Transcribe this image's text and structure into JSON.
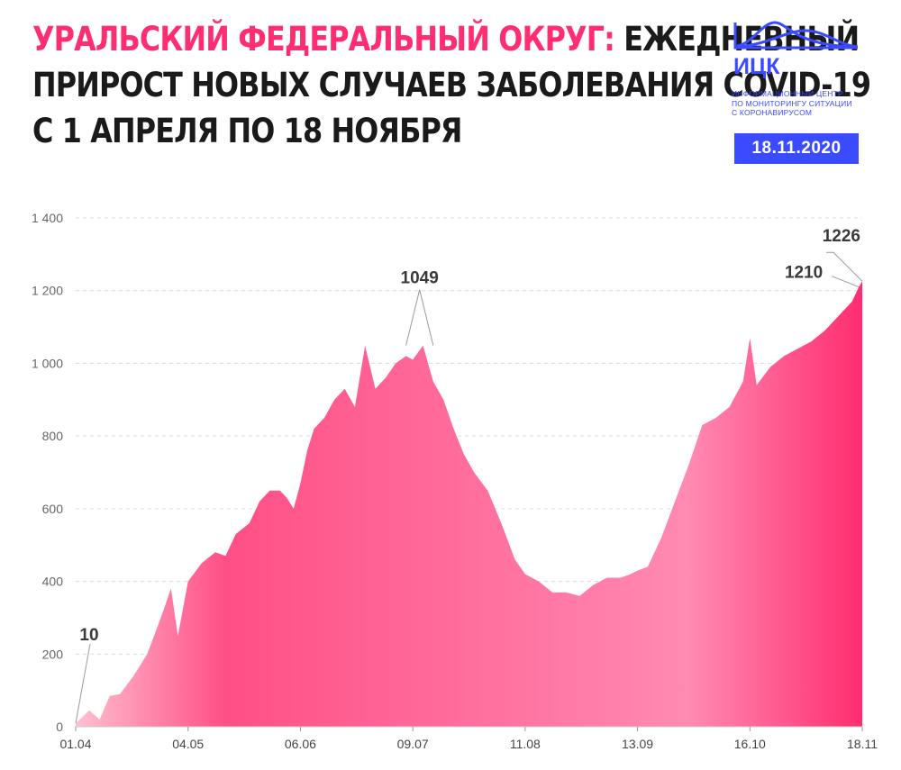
{
  "header": {
    "title_highlight": "УРАЛЬСКИЙ ФЕДЕРАЛЬНЫЙ ОКРУГ:",
    "title_line1_rest": " ЕЖЕДНЕВНЫЙ",
    "title_line2": "ПРИРОСТ НОВЫХ СЛУЧАЕВ ЗАБОЛЕВАНИЯ COVID-19",
    "title_line3": "С 1 АПРЕЛЯ ПО 18 НОЯБРЯ"
  },
  "logo": {
    "abbr": "ИЦК",
    "org_lines": [
      "ИНФОРМАЦИОННЫЙ ЦЕНТР",
      "ПО МОНИТОРИНГУ СИТУАЦИИ",
      "С КОРОНАВИРУСОМ"
    ],
    "date": "18.11.2020",
    "color": "#3b4bff"
  },
  "colors": {
    "accent": "#ff2e72",
    "area_start": "#ffc0d2",
    "area_mid": "#ff4f86",
    "area_light": "#ff8ab2",
    "area_end": "#ff2d70",
    "grid": "#d9d9d9",
    "text_dark": "#1a1a1a"
  },
  "chart_data": {
    "type": "area",
    "title": "УРАЛЬСКИЙ ФЕДЕРАЛЬНЫЙ ОКРУГ: ЕЖЕДНЕВНЫЙ ПРИРОСТ НОВЫХ СЛУЧАЕВ ЗАБОЛЕВАНИЯ COVID-19 С 1 АПРЕЛЯ ПО 18 НОЯБРЯ",
    "xlabel": "",
    "ylabel": "",
    "ylim": [
      0,
      1400
    ],
    "yticks": [
      0,
      200,
      400,
      600,
      800,
      1000,
      1200,
      1400
    ],
    "ytick_labels": [
      "0",
      "200",
      "400",
      "600",
      "800",
      "1 000",
      "1 200",
      "1 400"
    ],
    "xtick_labels": [
      "01.04",
      "04.05",
      "06.06",
      "09.07",
      "11.08",
      "13.09",
      "16.10",
      "18.11"
    ],
    "grid": true,
    "legend": "none",
    "series": [
      {
        "x": [
          "2020-04-01",
          "2020-04-05",
          "2020-04-08",
          "2020-04-11",
          "2020-04-14",
          "2020-04-18",
          "2020-04-22",
          "2020-04-26",
          "2020-04-29",
          "2020-05-01",
          "2020-05-04",
          "2020-05-08",
          "2020-05-12",
          "2020-05-15",
          "2020-05-18",
          "2020-05-22",
          "2020-05-25",
          "2020-05-28",
          "2020-05-31",
          "2020-06-02",
          "2020-06-04",
          "2020-06-06",
          "2020-06-08",
          "2020-06-10",
          "2020-06-13",
          "2020-06-16",
          "2020-06-19",
          "2020-06-22",
          "2020-06-25",
          "2020-06-28",
          "2020-07-01",
          "2020-07-04",
          "2020-07-07",
          "2020-07-09",
          "2020-07-12",
          "2020-07-15",
          "2020-07-18",
          "2020-07-21",
          "2020-07-24",
          "2020-07-27",
          "2020-07-31",
          "2020-08-04",
          "2020-08-08",
          "2020-08-11",
          "2020-08-15",
          "2020-08-19",
          "2020-08-23",
          "2020-08-27",
          "2020-08-31",
          "2020-09-04",
          "2020-09-08",
          "2020-09-11",
          "2020-09-13",
          "2020-09-16",
          "2020-09-20",
          "2020-09-24",
          "2020-09-28",
          "2020-10-02",
          "2020-10-06",
          "2020-10-10",
          "2020-10-14",
          "2020-10-16",
          "2020-10-18",
          "2020-10-22",
          "2020-10-26",
          "2020-10-30",
          "2020-11-03",
          "2020-11-07",
          "2020-11-11",
          "2020-11-15",
          "2020-11-17",
          "2020-11-18"
        ],
        "values": [
          10,
          45,
          20,
          85,
          90,
          140,
          200,
          300,
          380,
          250,
          400,
          450,
          480,
          470,
          530,
          560,
          620,
          650,
          650,
          630,
          600,
          670,
          760,
          820,
          850,
          900,
          930,
          880,
          1049,
          930,
          960,
          1000,
          1020,
          1010,
          1049,
          950,
          900,
          820,
          750,
          700,
          650,
          560,
          460,
          420,
          400,
          370,
          370,
          360,
          390,
          410,
          410,
          420,
          430,
          440,
          520,
          620,
          720,
          830,
          850,
          880,
          950,
          1070,
          940,
          990,
          1020,
          1040,
          1060,
          1090,
          1130,
          1170,
          1210,
          1226
        ]
      }
    ],
    "annotations": [
      {
        "text": "10",
        "x": "2020-04-01",
        "y": 10
      },
      {
        "text": "1049",
        "x": "2020-07-07",
        "y": 1049,
        "x2": "2020-07-15",
        "y2": 1049
      },
      {
        "text": "1210",
        "x": "2020-11-17",
        "y": 1210
      },
      {
        "text": "1226",
        "x": "2020-11-18",
        "y": 1226
      }
    ]
  }
}
